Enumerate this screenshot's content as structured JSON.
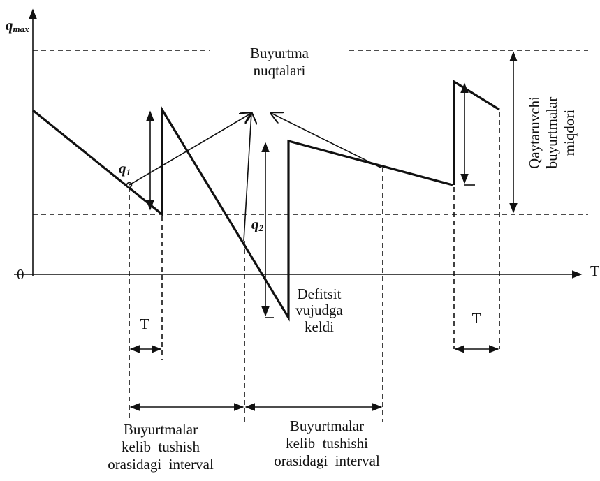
{
  "axes": {
    "y_label": {
      "symbol": "q",
      "subscript": "max"
    },
    "origin": "0",
    "x_label": "T"
  },
  "labels": {
    "order_points": [
      "Buyurtma",
      "nuqtalari"
    ],
    "reorder_quantity": [
      "Qaytaruvchi",
      "buyurtmalar",
      "miqdori"
    ],
    "q1": {
      "symbol": "q",
      "subscript": "1"
    },
    "q2": {
      "symbol": "q",
      "subscript": "2"
    },
    "deficit": [
      "Defitsit",
      "vujudga",
      "keldi"
    ],
    "lead_time_1": "T",
    "lead_time_2": "T",
    "interval_1": [
      "Buyurtmalar",
      "kelib  tushish",
      "orasidagi  interval"
    ],
    "interval_2": [
      "Buyurtmalar",
      "kelib  tushishi",
      "orasidagi  interval"
    ]
  }
}
